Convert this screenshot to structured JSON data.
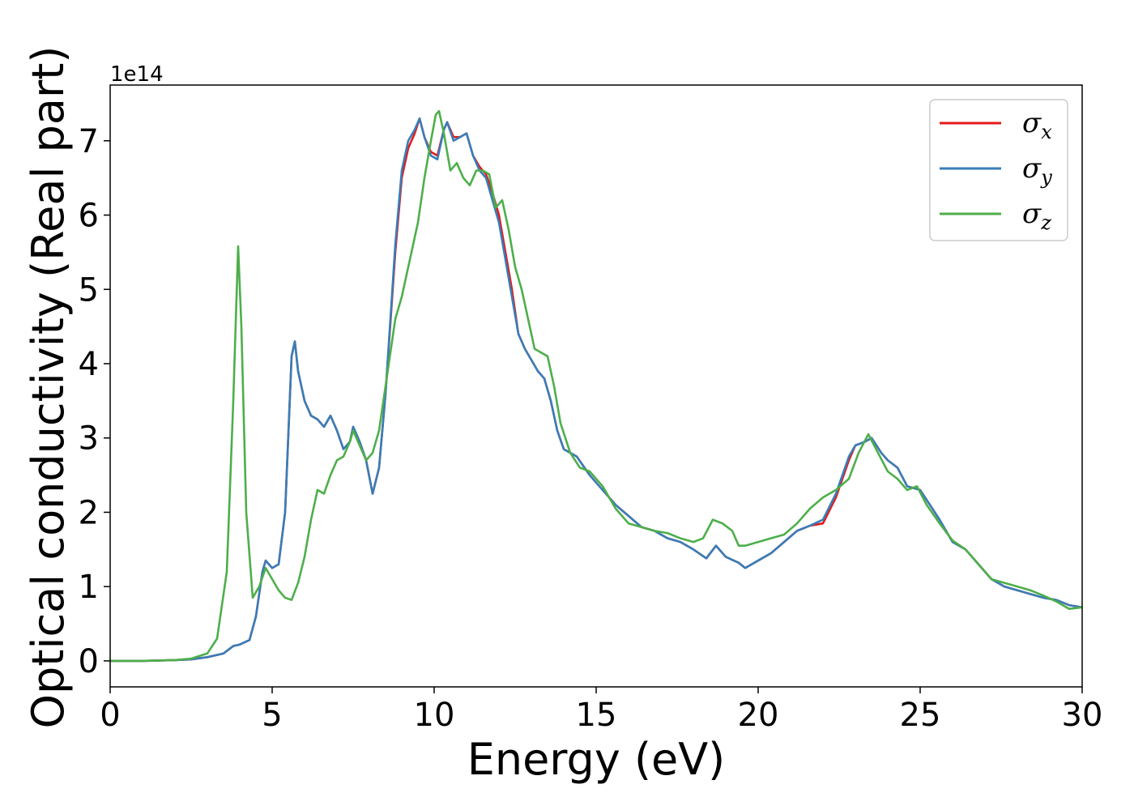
{
  "chart_data": {
    "type": "line",
    "xlabel": "Energy (eV)",
    "ylabel": "Optical conductivity (Real part)",
    "y_offset_text": "1e14",
    "xlim": [
      0,
      30
    ],
    "ylim": [
      -0.35,
      7.75
    ],
    "y_multiplier": 100000000000000.0,
    "x_ticks": [
      0,
      5,
      10,
      15,
      20,
      25,
      30
    ],
    "y_ticks": [
      0,
      1,
      2,
      3,
      4,
      5,
      6,
      7
    ],
    "grid": false,
    "legend_position": "top-right",
    "series": [
      {
        "name": "σx",
        "symbol": "σ",
        "subscript": "x",
        "color": "#e41a1c",
        "points": [
          [
            0,
            0
          ],
          [
            1,
            0
          ],
          [
            2,
            0.01
          ],
          [
            2.5,
            0.02
          ],
          [
            3,
            0.05
          ],
          [
            3.5,
            0.1
          ],
          [
            3.8,
            0.2
          ],
          [
            4.0,
            0.22
          ],
          [
            4.3,
            0.28
          ],
          [
            4.5,
            0.6
          ],
          [
            4.7,
            1.2
          ],
          [
            4.8,
            1.35
          ],
          [
            5.0,
            1.25
          ],
          [
            5.2,
            1.3
          ],
          [
            5.4,
            2.0
          ],
          [
            5.6,
            4.1
          ],
          [
            5.7,
            4.3
          ],
          [
            5.8,
            3.9
          ],
          [
            6.0,
            3.5
          ],
          [
            6.2,
            3.3
          ],
          [
            6.4,
            3.25
          ],
          [
            6.6,
            3.15
          ],
          [
            6.8,
            3.3
          ],
          [
            7.0,
            3.1
          ],
          [
            7.2,
            2.85
          ],
          [
            7.4,
            2.95
          ],
          [
            7.5,
            3.15
          ],
          [
            7.7,
            2.95
          ],
          [
            7.9,
            2.7
          ],
          [
            8.1,
            2.25
          ],
          [
            8.3,
            2.6
          ],
          [
            8.5,
            3.6
          ],
          [
            8.8,
            5.5
          ],
          [
            9.0,
            6.5
          ],
          [
            9.2,
            6.9
          ],
          [
            9.4,
            7.1
          ],
          [
            9.55,
            7.3
          ],
          [
            9.7,
            7.05
          ],
          [
            9.9,
            6.85
          ],
          [
            10.1,
            6.8
          ],
          [
            10.3,
            7.15
          ],
          [
            10.4,
            7.25
          ],
          [
            10.6,
            7.05
          ],
          [
            10.8,
            7.05
          ],
          [
            11.0,
            7.1
          ],
          [
            11.2,
            6.8
          ],
          [
            11.4,
            6.65
          ],
          [
            11.6,
            6.55
          ],
          [
            11.8,
            6.3
          ],
          [
            12.0,
            6.0
          ],
          [
            12.2,
            5.5
          ],
          [
            12.4,
            5.0
          ],
          [
            12.6,
            4.4
          ],
          [
            12.8,
            4.2
          ],
          [
            13.0,
            4.05
          ],
          [
            13.2,
            3.9
          ],
          [
            13.4,
            3.8
          ],
          [
            13.6,
            3.5
          ],
          [
            13.8,
            3.1
          ],
          [
            14.0,
            2.85
          ],
          [
            14.4,
            2.75
          ],
          [
            14.8,
            2.5
          ],
          [
            15.2,
            2.3
          ],
          [
            15.6,
            2.1
          ],
          [
            16.0,
            1.95
          ],
          [
            16.4,
            1.8
          ],
          [
            16.8,
            1.75
          ],
          [
            17.2,
            1.65
          ],
          [
            17.6,
            1.6
          ],
          [
            18.0,
            1.5
          ],
          [
            18.4,
            1.38
          ],
          [
            18.7,
            1.55
          ],
          [
            19.0,
            1.4
          ],
          [
            19.4,
            1.32
          ],
          [
            19.6,
            1.25
          ],
          [
            20.0,
            1.35
          ],
          [
            20.4,
            1.45
          ],
          [
            20.8,
            1.6
          ],
          [
            21.2,
            1.75
          ],
          [
            21.6,
            1.82
          ],
          [
            22.0,
            1.85
          ],
          [
            22.4,
            2.2
          ],
          [
            22.8,
            2.7
          ],
          [
            23.0,
            2.9
          ],
          [
            23.3,
            2.95
          ],
          [
            23.5,
            3.0
          ],
          [
            23.8,
            2.8
          ],
          [
            24.0,
            2.7
          ],
          [
            24.3,
            2.6
          ],
          [
            24.6,
            2.35
          ],
          [
            25.0,
            2.3
          ],
          [
            25.3,
            2.1
          ],
          [
            25.6,
            1.9
          ],
          [
            26.0,
            1.6
          ],
          [
            26.4,
            1.5
          ],
          [
            26.8,
            1.3
          ],
          [
            27.2,
            1.1
          ],
          [
            27.6,
            1.0
          ],
          [
            28.0,
            0.95
          ],
          [
            28.4,
            0.9
          ],
          [
            28.8,
            0.85
          ],
          [
            29.2,
            0.82
          ],
          [
            29.6,
            0.75
          ],
          [
            30.0,
            0.72
          ]
        ]
      },
      {
        "name": "σy",
        "symbol": "σ",
        "subscript": "y",
        "color": "#377eb8",
        "points": [
          [
            0,
            0
          ],
          [
            1,
            0
          ],
          [
            2,
            0.01
          ],
          [
            2.5,
            0.02
          ],
          [
            3,
            0.05
          ],
          [
            3.5,
            0.1
          ],
          [
            3.8,
            0.2
          ],
          [
            4.0,
            0.22
          ],
          [
            4.3,
            0.28
          ],
          [
            4.5,
            0.6
          ],
          [
            4.7,
            1.2
          ],
          [
            4.8,
            1.35
          ],
          [
            5.0,
            1.25
          ],
          [
            5.2,
            1.3
          ],
          [
            5.4,
            2.0
          ],
          [
            5.6,
            4.1
          ],
          [
            5.7,
            4.3
          ],
          [
            5.8,
            3.9
          ],
          [
            6.0,
            3.5
          ],
          [
            6.2,
            3.3
          ],
          [
            6.4,
            3.25
          ],
          [
            6.6,
            3.15
          ],
          [
            6.8,
            3.3
          ],
          [
            7.0,
            3.1
          ],
          [
            7.2,
            2.85
          ],
          [
            7.4,
            2.95
          ],
          [
            7.5,
            3.15
          ],
          [
            7.7,
            2.95
          ],
          [
            7.9,
            2.7
          ],
          [
            8.1,
            2.25
          ],
          [
            8.3,
            2.6
          ],
          [
            8.5,
            3.6
          ],
          [
            8.8,
            5.6
          ],
          [
            9.0,
            6.6
          ],
          [
            9.2,
            7.0
          ],
          [
            9.4,
            7.15
          ],
          [
            9.55,
            7.3
          ],
          [
            9.7,
            7.05
          ],
          [
            9.9,
            6.8
          ],
          [
            10.1,
            6.75
          ],
          [
            10.3,
            7.15
          ],
          [
            10.4,
            7.25
          ],
          [
            10.6,
            7.0
          ],
          [
            10.8,
            7.05
          ],
          [
            11.0,
            7.1
          ],
          [
            11.2,
            6.8
          ],
          [
            11.4,
            6.6
          ],
          [
            11.6,
            6.5
          ],
          [
            11.8,
            6.2
          ],
          [
            12.0,
            5.9
          ],
          [
            12.2,
            5.4
          ],
          [
            12.4,
            4.9
          ],
          [
            12.6,
            4.4
          ],
          [
            12.8,
            4.2
          ],
          [
            13.0,
            4.05
          ],
          [
            13.2,
            3.9
          ],
          [
            13.4,
            3.8
          ],
          [
            13.6,
            3.5
          ],
          [
            13.8,
            3.1
          ],
          [
            14.0,
            2.85
          ],
          [
            14.4,
            2.75
          ],
          [
            14.8,
            2.5
          ],
          [
            15.2,
            2.3
          ],
          [
            15.6,
            2.1
          ],
          [
            16.0,
            1.95
          ],
          [
            16.4,
            1.8
          ],
          [
            16.8,
            1.75
          ],
          [
            17.2,
            1.65
          ],
          [
            17.6,
            1.6
          ],
          [
            18.0,
            1.5
          ],
          [
            18.4,
            1.38
          ],
          [
            18.7,
            1.55
          ],
          [
            19.0,
            1.4
          ],
          [
            19.4,
            1.32
          ],
          [
            19.6,
            1.25
          ],
          [
            20.0,
            1.35
          ],
          [
            20.4,
            1.45
          ],
          [
            20.8,
            1.6
          ],
          [
            21.2,
            1.75
          ],
          [
            21.6,
            1.82
          ],
          [
            22.0,
            1.9
          ],
          [
            22.4,
            2.25
          ],
          [
            22.8,
            2.75
          ],
          [
            23.0,
            2.9
          ],
          [
            23.3,
            2.95
          ],
          [
            23.5,
            3.0
          ],
          [
            23.8,
            2.8
          ],
          [
            24.0,
            2.7
          ],
          [
            24.3,
            2.6
          ],
          [
            24.6,
            2.35
          ],
          [
            25.0,
            2.3
          ],
          [
            25.3,
            2.1
          ],
          [
            25.6,
            1.9
          ],
          [
            26.0,
            1.6
          ],
          [
            26.4,
            1.5
          ],
          [
            26.8,
            1.3
          ],
          [
            27.2,
            1.1
          ],
          [
            27.6,
            1.0
          ],
          [
            28.0,
            0.95
          ],
          [
            28.4,
            0.9
          ],
          [
            28.8,
            0.85
          ],
          [
            29.2,
            0.82
          ],
          [
            29.6,
            0.75
          ],
          [
            30.0,
            0.72
          ]
        ]
      },
      {
        "name": "σz",
        "symbol": "σ",
        "subscript": "z",
        "color": "#4daf4a",
        "points": [
          [
            0,
            0
          ],
          [
            1,
            0
          ],
          [
            2,
            0.01
          ],
          [
            2.5,
            0.03
          ],
          [
            3.0,
            0.1
          ],
          [
            3.3,
            0.3
          ],
          [
            3.6,
            1.2
          ],
          [
            3.8,
            3.5
          ],
          [
            3.95,
            5.58
          ],
          [
            4.05,
            4.5
          ],
          [
            4.2,
            2.0
          ],
          [
            4.4,
            0.85
          ],
          [
            4.6,
            1.0
          ],
          [
            4.8,
            1.25
          ],
          [
            5.0,
            1.1
          ],
          [
            5.2,
            0.95
          ],
          [
            5.4,
            0.85
          ],
          [
            5.6,
            0.82
          ],
          [
            5.8,
            1.05
          ],
          [
            6.0,
            1.4
          ],
          [
            6.2,
            1.9
          ],
          [
            6.4,
            2.3
          ],
          [
            6.6,
            2.25
          ],
          [
            6.8,
            2.5
          ],
          [
            7.0,
            2.7
          ],
          [
            7.2,
            2.75
          ],
          [
            7.4,
            2.95
          ],
          [
            7.5,
            3.1
          ],
          [
            7.7,
            2.9
          ],
          [
            7.9,
            2.7
          ],
          [
            8.1,
            2.8
          ],
          [
            8.3,
            3.1
          ],
          [
            8.5,
            3.7
          ],
          [
            8.8,
            4.6
          ],
          [
            9.0,
            4.9
          ],
          [
            9.2,
            5.3
          ],
          [
            9.5,
            5.9
          ],
          [
            9.7,
            6.5
          ],
          [
            9.9,
            7.0
          ],
          [
            10.05,
            7.35
          ],
          [
            10.15,
            7.4
          ],
          [
            10.3,
            7.1
          ],
          [
            10.5,
            6.6
          ],
          [
            10.7,
            6.7
          ],
          [
            10.9,
            6.5
          ],
          [
            11.1,
            6.4
          ],
          [
            11.3,
            6.6
          ],
          [
            11.5,
            6.6
          ],
          [
            11.7,
            6.55
          ],
          [
            11.9,
            6.1
          ],
          [
            12.1,
            6.2
          ],
          [
            12.3,
            5.8
          ],
          [
            12.5,
            5.3
          ],
          [
            12.7,
            5.0
          ],
          [
            12.9,
            4.6
          ],
          [
            13.1,
            4.2
          ],
          [
            13.3,
            4.15
          ],
          [
            13.5,
            4.1
          ],
          [
            13.7,
            3.7
          ],
          [
            13.9,
            3.2
          ],
          [
            14.2,
            2.8
          ],
          [
            14.5,
            2.6
          ],
          [
            14.8,
            2.55
          ],
          [
            15.2,
            2.35
          ],
          [
            15.6,
            2.05
          ],
          [
            16.0,
            1.85
          ],
          [
            16.4,
            1.8
          ],
          [
            16.8,
            1.75
          ],
          [
            17.2,
            1.72
          ],
          [
            17.6,
            1.65
          ],
          [
            18.0,
            1.6
          ],
          [
            18.3,
            1.65
          ],
          [
            18.6,
            1.9
          ],
          [
            18.9,
            1.85
          ],
          [
            19.2,
            1.75
          ],
          [
            19.4,
            1.55
          ],
          [
            19.6,
            1.55
          ],
          [
            20.0,
            1.6
          ],
          [
            20.4,
            1.65
          ],
          [
            20.8,
            1.7
          ],
          [
            21.2,
            1.85
          ],
          [
            21.6,
            2.05
          ],
          [
            22.0,
            2.2
          ],
          [
            22.4,
            2.3
          ],
          [
            22.8,
            2.45
          ],
          [
            23.1,
            2.8
          ],
          [
            23.4,
            3.05
          ],
          [
            23.7,
            2.8
          ],
          [
            24.0,
            2.55
          ],
          [
            24.3,
            2.45
          ],
          [
            24.6,
            2.3
          ],
          [
            24.9,
            2.35
          ],
          [
            25.2,
            2.1
          ],
          [
            25.6,
            1.85
          ],
          [
            26.0,
            1.62
          ],
          [
            26.4,
            1.5
          ],
          [
            26.8,
            1.3
          ],
          [
            27.2,
            1.1
          ],
          [
            27.6,
            1.05
          ],
          [
            28.0,
            1.0
          ],
          [
            28.4,
            0.95
          ],
          [
            28.8,
            0.88
          ],
          [
            29.2,
            0.8
          ],
          [
            29.6,
            0.7
          ],
          [
            30.0,
            0.72
          ]
        ]
      }
    ]
  }
}
